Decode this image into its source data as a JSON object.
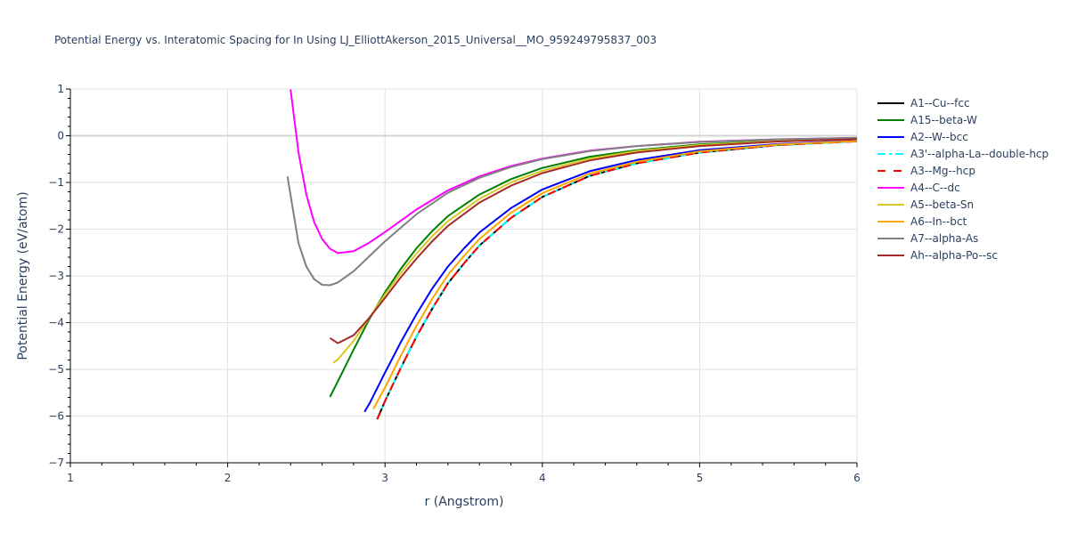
{
  "chart_data": {
    "type": "line",
    "title": "Potential Energy vs. Interatomic Spacing for In Using LJ_ElliottAkerson_2015_Universal__MO_959249795837_003",
    "xlabel": "r (Angstrom)",
    "ylabel": "Potential Energy (eV/atom)",
    "xlim": [
      1,
      6
    ],
    "ylim": [
      -7,
      1
    ],
    "x_ticks": [
      1,
      2,
      3,
      4,
      5,
      6
    ],
    "y_ticks": [
      1,
      0,
      -1,
      -2,
      -3,
      -4,
      -5,
      -6,
      -7
    ],
    "grid": true,
    "legend_position": "right",
    "series": [
      {
        "name": "A1--Cu--fcc",
        "color": "#000000",
        "dash": "solid",
        "x": [
          2.95,
          3.0,
          3.1,
          3.2,
          3.3,
          3.4,
          3.5,
          3.6,
          3.8,
          4.0,
          4.3,
          4.6,
          5.0,
          5.5,
          6.0
        ],
        "y": [
          -6.07,
          -5.68,
          -4.97,
          -4.3,
          -3.7,
          -3.16,
          -2.74,
          -2.35,
          -1.76,
          -1.31,
          -0.86,
          -0.59,
          -0.36,
          -0.2,
          -0.12
        ]
      },
      {
        "name": "A15--beta-W",
        "color": "#008000",
        "dash": "solid",
        "x": [
          2.65,
          2.7,
          2.8,
          2.9,
          3.0,
          3.1,
          3.2,
          3.3,
          3.4,
          3.6,
          3.8,
          4.0,
          4.3,
          4.6,
          5.0,
          5.5,
          6.0
        ],
        "y": [
          -5.59,
          -5.26,
          -4.58,
          -3.93,
          -3.35,
          -2.85,
          -2.41,
          -2.04,
          -1.72,
          -1.26,
          -0.93,
          -0.69,
          -0.45,
          -0.31,
          -0.185,
          -0.105,
          -0.062
        ]
      },
      {
        "name": "A2--W--bcc",
        "color": "#0000ff",
        "dash": "solid",
        "x": [
          2.87,
          2.9,
          3.0,
          3.1,
          3.2,
          3.3,
          3.4,
          3.5,
          3.6,
          3.8,
          4.0,
          4.3,
          4.6,
          5.0,
          5.5,
          6.0
        ],
        "y": [
          -5.91,
          -5.74,
          -5.07,
          -4.42,
          -3.82,
          -3.27,
          -2.8,
          -2.42,
          -2.07,
          -1.55,
          -1.15,
          -0.76,
          -0.52,
          -0.31,
          -0.18,
          -0.106
        ]
      },
      {
        "name": "A3'--alpha-La--double-hcp",
        "color": "#00ffff",
        "dash": "dashdot",
        "x": [
          2.95,
          3.0,
          3.1,
          3.2,
          3.3,
          3.4,
          3.5,
          3.6,
          3.8,
          4.0,
          4.3,
          4.6,
          5.0,
          5.5,
          6.0
        ],
        "y": [
          -6.07,
          -5.68,
          -4.97,
          -4.3,
          -3.7,
          -3.16,
          -2.74,
          -2.35,
          -1.76,
          -1.31,
          -0.86,
          -0.59,
          -0.36,
          -0.2,
          -0.12
        ]
      },
      {
        "name": "A3--Mg--hcp",
        "color": "#ff0000",
        "dash": "dash",
        "x": [
          2.95,
          3.0,
          3.1,
          3.2,
          3.3,
          3.4,
          3.5,
          3.6,
          3.8,
          4.0,
          4.3,
          4.6,
          5.0,
          5.5,
          6.0
        ],
        "y": [
          -6.07,
          -5.68,
          -4.97,
          -4.3,
          -3.7,
          -3.16,
          -2.74,
          -2.35,
          -1.76,
          -1.31,
          -0.86,
          -0.59,
          -0.36,
          -0.2,
          -0.12
        ]
      },
      {
        "name": "A4--C--dc",
        "color": "#ff00ff",
        "dash": "solid",
        "x": [
          2.4,
          2.45,
          2.5,
          2.55,
          2.6,
          2.65,
          2.7,
          2.8,
          2.9,
          3.0,
          3.2,
          3.4,
          3.6,
          3.8,
          4.0,
          4.3,
          4.6,
          5.0,
          5.5,
          6.0
        ],
        "y": [
          0.99,
          -0.36,
          -1.26,
          -1.85,
          -2.21,
          -2.42,
          -2.51,
          -2.47,
          -2.29,
          -2.06,
          -1.58,
          -1.17,
          -0.87,
          -0.65,
          -0.49,
          -0.32,
          -0.22,
          -0.13,
          -0.076,
          -0.045
        ]
      },
      {
        "name": "A5--beta-Sn",
        "color": "#dbc723",
        "dash": "solid",
        "x": [
          2.67,
          2.7,
          2.8,
          2.9,
          3.0,
          3.1,
          3.2,
          3.3,
          3.4,
          3.6,
          3.8,
          4.0,
          4.3,
          4.6,
          5.0,
          5.5,
          6.0
        ],
        "y": [
          -4.86,
          -4.79,
          -4.39,
          -3.9,
          -3.4,
          -2.94,
          -2.52,
          -2.15,
          -1.83,
          -1.35,
          -1.0,
          -0.75,
          -0.49,
          -0.33,
          -0.2,
          -0.115,
          -0.068
        ]
      },
      {
        "name": "A6--In--bct",
        "color": "#ffa500",
        "dash": "solid",
        "x": [
          2.925,
          3.0,
          3.1,
          3.2,
          3.3,
          3.4,
          3.5,
          3.6,
          3.8,
          4.0,
          4.3,
          4.6,
          5.0,
          5.5,
          6.0
        ],
        "y": [
          -5.85,
          -5.39,
          -4.71,
          -4.07,
          -3.49,
          -2.98,
          -2.58,
          -2.21,
          -1.65,
          -1.23,
          -0.81,
          -0.56,
          -0.335,
          -0.19,
          -0.114
        ]
      },
      {
        "name": "A7--alpha-As",
        "color": "#808080",
        "dash": "solid",
        "x": [
          2.38,
          2.45,
          2.5,
          2.55,
          2.6,
          2.65,
          2.7,
          2.8,
          2.9,
          3.0,
          3.2,
          3.4,
          3.6,
          3.8,
          4.0,
          4.3,
          4.6,
          5.0,
          5.5,
          6.0
        ],
        "y": [
          -0.87,
          -2.3,
          -2.8,
          -3.07,
          -3.19,
          -3.2,
          -3.14,
          -2.9,
          -2.58,
          -2.26,
          -1.68,
          -1.22,
          -0.9,
          -0.67,
          -0.5,
          -0.33,
          -0.22,
          -0.135,
          -0.077,
          -0.046
        ]
      },
      {
        "name": "Ah--alpha-Po--sc",
        "color": "#a52a2a",
        "dash": "solid",
        "x": [
          2.65,
          2.7,
          2.8,
          2.9,
          3.0,
          3.1,
          3.2,
          3.3,
          3.4,
          3.6,
          3.8,
          4.0,
          4.3,
          4.6,
          5.0,
          5.5,
          6.0
        ],
        "y": [
          -4.33,
          -4.44,
          -4.27,
          -3.9,
          -3.47,
          -3.03,
          -2.63,
          -2.26,
          -1.93,
          -1.43,
          -1.07,
          -0.8,
          -0.53,
          -0.36,
          -0.22,
          -0.124,
          -0.074
        ]
      }
    ]
  }
}
